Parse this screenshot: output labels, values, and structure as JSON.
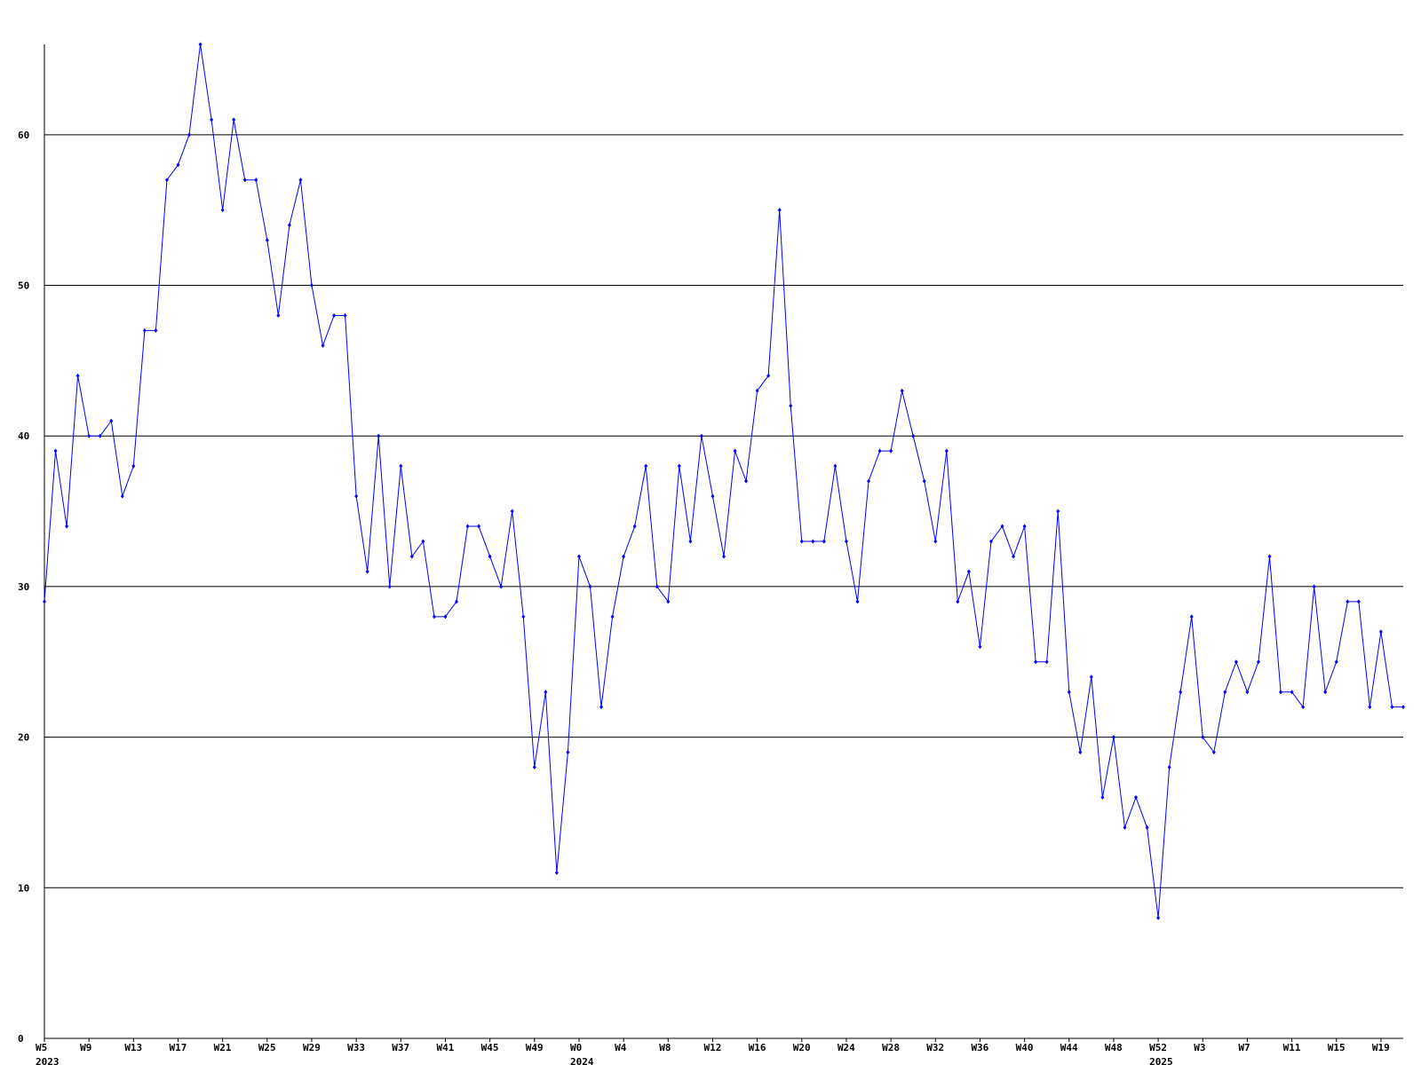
{
  "chart_data": {
    "type": "line",
    "title": "",
    "xlabel": "",
    "ylabel": "",
    "ylim": [
      0,
      66
    ],
    "grid": true,
    "y_ticks": [
      0,
      10,
      20,
      30,
      40,
      50,
      60
    ],
    "x_ticks": [
      {
        "index": 0,
        "label": "W5",
        "year": "2023"
      },
      {
        "index": 4,
        "label": "W9",
        "year": ""
      },
      {
        "index": 8,
        "label": "W13",
        "year": ""
      },
      {
        "index": 12,
        "label": "W17",
        "year": ""
      },
      {
        "index": 16,
        "label": "W21",
        "year": ""
      },
      {
        "index": 20,
        "label": "W25",
        "year": ""
      },
      {
        "index": 24,
        "label": "W29",
        "year": ""
      },
      {
        "index": 28,
        "label": "W33",
        "year": ""
      },
      {
        "index": 32,
        "label": "W37",
        "year": ""
      },
      {
        "index": 36,
        "label": "W41",
        "year": ""
      },
      {
        "index": 40,
        "label": "W45",
        "year": ""
      },
      {
        "index": 44,
        "label": "W49",
        "year": ""
      },
      {
        "index": 48,
        "label": "W0",
        "year": "2024"
      },
      {
        "index": 52,
        "label": "W4",
        "year": ""
      },
      {
        "index": 56,
        "label": "W8",
        "year": ""
      },
      {
        "index": 60,
        "label": "W12",
        "year": ""
      },
      {
        "index": 64,
        "label": "W16",
        "year": ""
      },
      {
        "index": 68,
        "label": "W20",
        "year": ""
      },
      {
        "index": 72,
        "label": "W24",
        "year": ""
      },
      {
        "index": 76,
        "label": "W28",
        "year": ""
      },
      {
        "index": 80,
        "label": "W32",
        "year": ""
      },
      {
        "index": 84,
        "label": "W36",
        "year": ""
      },
      {
        "index": 88,
        "label": "W40",
        "year": ""
      },
      {
        "index": 92,
        "label": "W44",
        "year": ""
      },
      {
        "index": 96,
        "label": "W48",
        "year": ""
      },
      {
        "index": 100,
        "label": "W52",
        "year": "2025"
      },
      {
        "index": 104,
        "label": "W3",
        "year": ""
      },
      {
        "index": 108,
        "label": "W7",
        "year": ""
      },
      {
        "index": 112,
        "label": "W11",
        "year": ""
      },
      {
        "index": 116,
        "label": "W15",
        "year": ""
      },
      {
        "index": 120,
        "label": "W19",
        "year": ""
      }
    ],
    "series": [
      {
        "values": [
          29,
          39,
          34,
          44,
          40,
          40,
          41,
          36,
          38,
          47,
          47,
          57,
          58,
          60,
          66,
          61,
          55,
          61,
          57,
          57,
          53,
          48,
          54,
          57,
          50,
          46,
          48,
          48,
          36,
          31,
          40,
          30,
          38,
          32,
          33,
          28,
          28,
          29,
          34,
          34,
          32,
          30,
          35,
          28,
          18,
          23,
          11,
          19,
          32,
          30,
          22,
          28,
          32,
          34,
          38,
          30,
          29,
          38,
          33,
          40,
          36,
          32,
          39,
          37,
          43,
          44,
          55,
          42,
          33,
          33,
          33,
          38,
          33,
          29,
          37,
          39,
          39,
          43,
          40,
          37,
          33,
          39,
          29,
          31,
          26,
          33,
          34,
          32,
          34,
          25,
          25,
          35,
          23,
          19,
          24,
          16,
          20,
          14,
          16,
          14,
          8,
          18,
          23,
          28,
          20,
          19,
          23,
          25,
          23,
          25,
          32,
          23,
          23,
          22,
          30,
          23,
          25,
          29,
          29,
          22,
          27,
          22,
          22
        ],
        "color": "#0000ff"
      }
    ],
    "colors": {
      "line": "#0000ff",
      "grid": "#000000",
      "axis": "#000000"
    }
  }
}
